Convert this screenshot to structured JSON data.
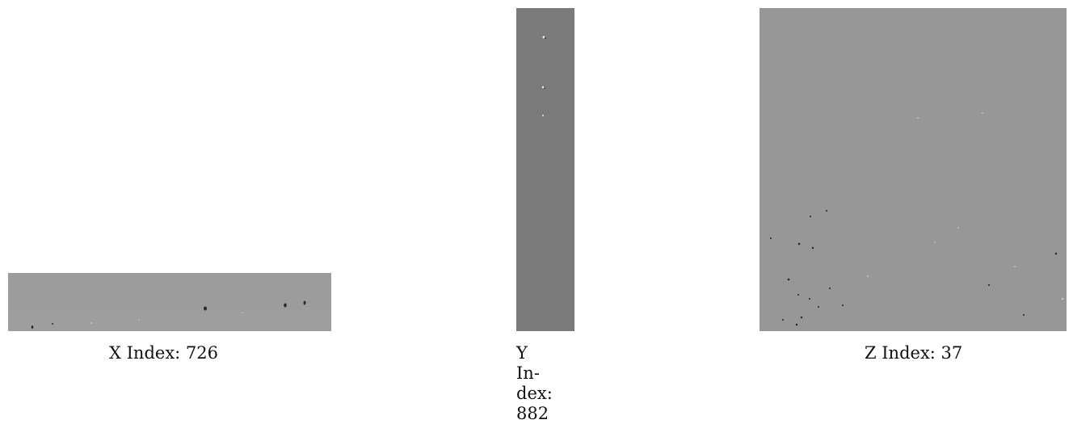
{
  "panels": [
    {
      "id": "x",
      "caption": "X Index: 726",
      "fill": "#9a9a9a"
    },
    {
      "id": "y",
      "caption_lines": [
        "Y In-",
        "dex:",
        "882"
      ],
      "fill": "#7a7a7a"
    },
    {
      "id": "z",
      "caption": "Z Index: 37",
      "fill": "#989898"
    }
  ]
}
